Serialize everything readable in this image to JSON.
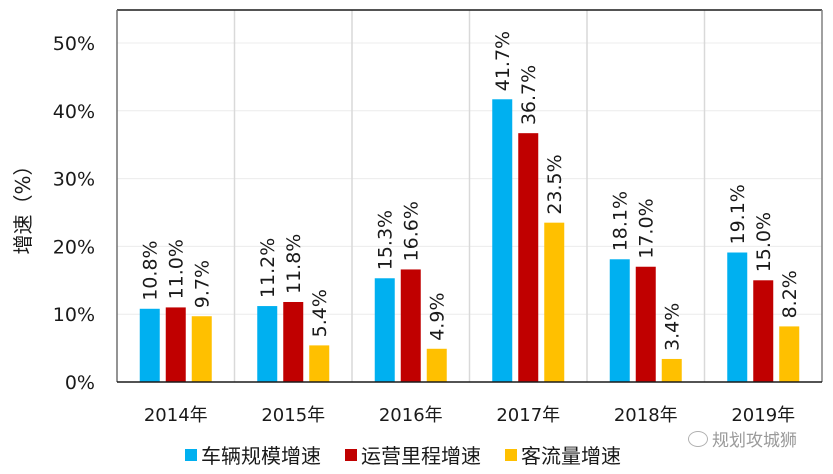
{
  "chart_data": {
    "type": "bar",
    "title": "",
    "xlabel": "",
    "ylabel": "增速（%）",
    "ylim": [
      0,
      55
    ],
    "yticks": [
      0,
      10,
      20,
      30,
      40,
      50
    ],
    "ytick_labels": [
      "0%",
      "10%",
      "20%",
      "30%",
      "40%",
      "50%"
    ],
    "grid": true,
    "legend_position": "bottom",
    "categories": [
      "2014年",
      "2015年",
      "2016年",
      "2017年",
      "2018年",
      "2019年"
    ],
    "series": [
      {
        "name": "车辆规模增速",
        "color": "#00b0f0",
        "values": [
          10.8,
          11.2,
          15.3,
          41.7,
          18.1,
          19.1
        ],
        "labels": [
          "10.8%",
          "11.2%",
          "15.3%",
          "41.7%",
          "18.1%",
          "19.1%"
        ]
      },
      {
        "name": "运营里程增速",
        "color": "#c00000",
        "values": [
          11.0,
          11.8,
          16.6,
          36.7,
          17.0,
          15.0
        ],
        "labels": [
          "11.0%",
          "11.8%",
          "16.6%",
          "36.7%",
          "17.0%",
          "15.0%"
        ]
      },
      {
        "name": "客流量增速",
        "color": "#ffc000",
        "values": [
          9.7,
          5.4,
          4.9,
          23.5,
          3.4,
          8.2
        ],
        "labels": [
          "9.7%",
          "5.4%",
          "4.9%",
          "23.5%",
          "3.4%",
          "8.2%"
        ]
      }
    ]
  },
  "watermark": {
    "text": "规划攻城狮",
    "icon": "wechat-icon"
  }
}
